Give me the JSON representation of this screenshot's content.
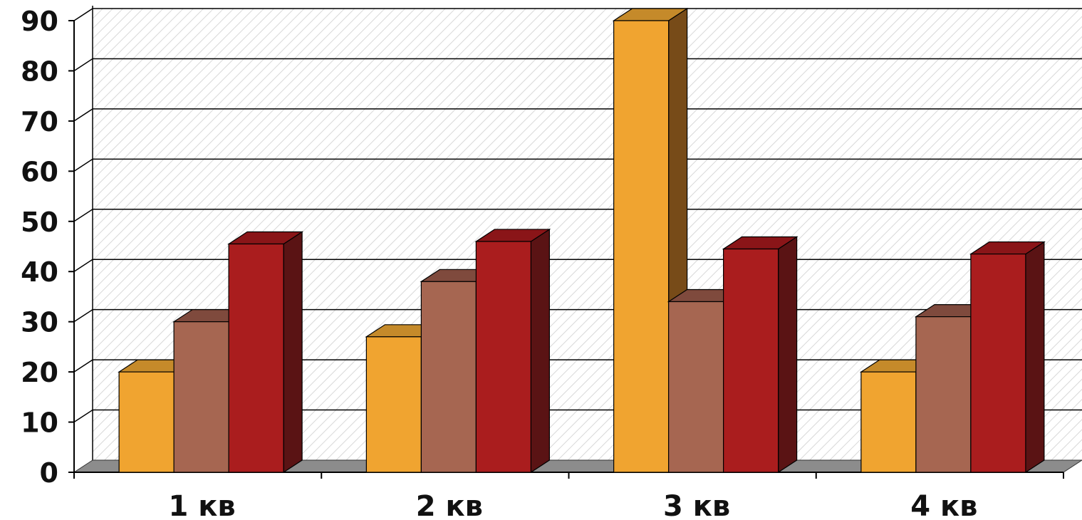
{
  "chart_data": {
    "type": "bar",
    "categories": [
      "1 кв",
      "2 кв",
      "3 кв",
      "4 кв"
    ],
    "series": [
      {
        "values": [
          20,
          27,
          90,
          20
        ]
      },
      {
        "values": [
          30,
          38,
          34,
          31
        ]
      },
      {
        "values": [
          45.5,
          46,
          44.5,
          43.5
        ]
      }
    ],
    "ylim": [
      0,
      90
    ],
    "yticks": [
      "0",
      "10",
      "20",
      "30",
      "40",
      "50",
      "60",
      "70",
      "80",
      "90"
    ],
    "grid": true,
    "legend": "none",
    "three_d": true,
    "colors": {
      "series_front": [
        "#F0A430",
        "#A66651",
        "#AA1D1E"
      ],
      "series_top": [
        "#C58A2A",
        "#7F4A3D",
        "#8A1518"
      ],
      "series_side": [
        "#774B18",
        "#5A302A",
        "#5A1314"
      ],
      "floor": "#8C8C8C",
      "grid": "#000000",
      "back_wall_hatch": "#D8D8D8",
      "axis": "#000000"
    }
  }
}
